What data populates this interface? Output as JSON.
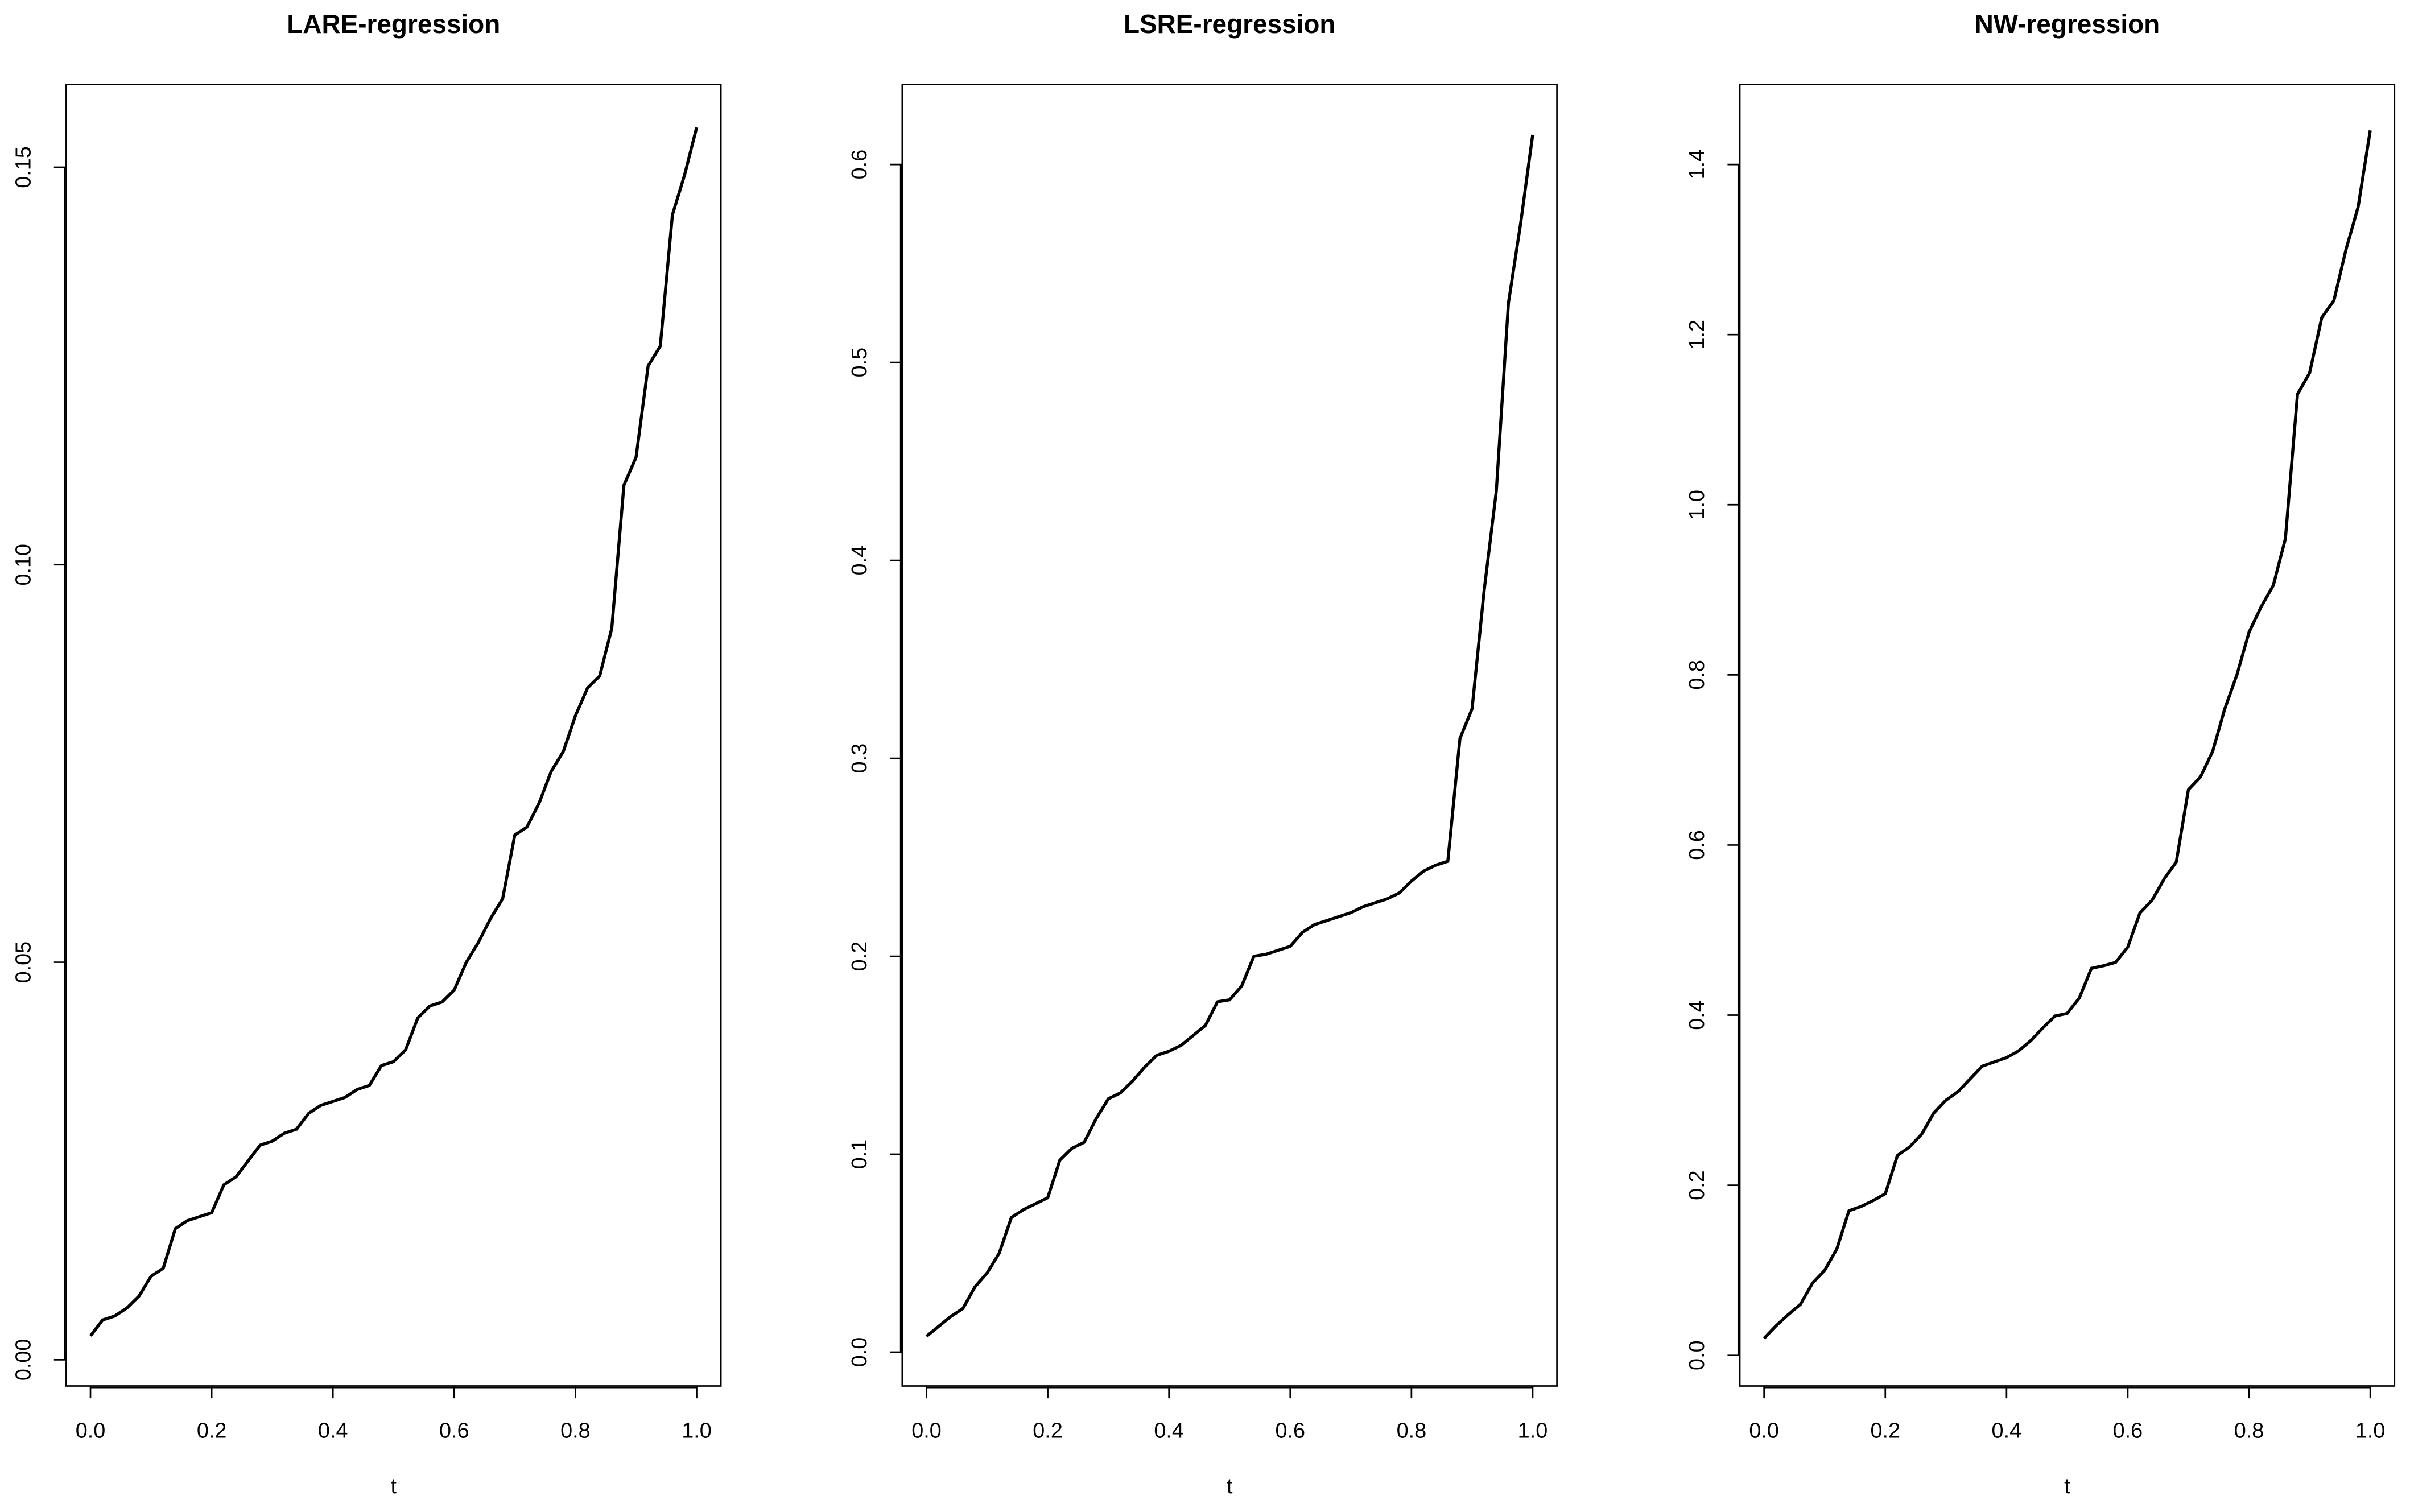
{
  "chart_data": [
    {
      "type": "line",
      "title": "LARE-regression",
      "xlabel": "t",
      "color": "#000000",
      "x": [
        0,
        0.02,
        0.04,
        0.06,
        0.08,
        0.1,
        0.12,
        0.14,
        0.16,
        0.18,
        0.2,
        0.22,
        0.24,
        0.26,
        0.28,
        0.3,
        0.32,
        0.34,
        0.36,
        0.38,
        0.4,
        0.42,
        0.44,
        0.46,
        0.48,
        0.5,
        0.52,
        0.54,
        0.56,
        0.58,
        0.6,
        0.62,
        0.64,
        0.66,
        0.68,
        0.7,
        0.72,
        0.74,
        0.76,
        0.78,
        0.8,
        0.82,
        0.84,
        0.86,
        0.88,
        0.9,
        0.92,
        0.94,
        0.96,
        0.98,
        1
      ],
      "values": [
        0.003,
        0.005,
        0.0055,
        0.0065,
        0.008,
        0.0105,
        0.0115,
        0.0165,
        0.0175,
        0.018,
        0.0185,
        0.022,
        0.023,
        0.025,
        0.027,
        0.0275,
        0.0285,
        0.029,
        0.031,
        0.032,
        0.0325,
        0.033,
        0.034,
        0.0345,
        0.037,
        0.0375,
        0.039,
        0.043,
        0.0445,
        0.045,
        0.0465,
        0.05,
        0.0525,
        0.0555,
        0.058,
        0.066,
        0.067,
        0.07,
        0.074,
        0.0765,
        0.081,
        0.0845,
        0.086,
        0.092,
        0.11,
        0.1135,
        0.125,
        0.1275,
        0.144,
        0.149,
        0.155
      ],
      "xlim": [
        -0.04,
        1.04
      ],
      "ylim": [
        -0.0033,
        0.1604
      ],
      "xticks": [
        {
          "value": 0,
          "label": "0.0"
        },
        {
          "value": 0.2,
          "label": "0.2"
        },
        {
          "value": 0.4,
          "label": "0.4"
        },
        {
          "value": 0.6,
          "label": "0.6"
        },
        {
          "value": 0.8,
          "label": "0.8"
        },
        {
          "value": 1,
          "label": "1.0"
        }
      ],
      "yticks": [
        {
          "value": 0,
          "label": "0.00"
        },
        {
          "value": 0.05,
          "label": "0.05"
        },
        {
          "value": 0.1,
          "label": "0.10"
        },
        {
          "value": 0.15,
          "label": "0.15"
        }
      ]
    },
    {
      "type": "line",
      "title": "LSRE-regression",
      "xlabel": "t",
      "color": "#000000",
      "x": [
        0,
        0.02,
        0.04,
        0.06,
        0.08,
        0.1,
        0.12,
        0.14,
        0.16,
        0.18,
        0.2,
        0.22,
        0.24,
        0.26,
        0.28,
        0.3,
        0.32,
        0.34,
        0.36,
        0.38,
        0.4,
        0.42,
        0.44,
        0.46,
        0.48,
        0.5,
        0.52,
        0.54,
        0.56,
        0.58,
        0.6,
        0.62,
        0.64,
        0.66,
        0.68,
        0.7,
        0.72,
        0.74,
        0.76,
        0.78,
        0.8,
        0.82,
        0.84,
        0.86,
        0.88,
        0.9,
        0.92,
        0.94,
        0.96,
        0.98,
        1
      ],
      "values": [
        0.008,
        0.013,
        0.018,
        0.022,
        0.033,
        0.04,
        0.05,
        0.068,
        0.072,
        0.075,
        0.078,
        0.097,
        0.103,
        0.106,
        0.118,
        0.128,
        0.131,
        0.137,
        0.144,
        0.15,
        0.152,
        0.155,
        0.16,
        0.165,
        0.177,
        0.178,
        0.185,
        0.2,
        0.201,
        0.203,
        0.205,
        0.212,
        0.216,
        0.218,
        0.22,
        0.222,
        0.225,
        0.227,
        0.229,
        0.232,
        0.238,
        0.243,
        0.246,
        0.248,
        0.31,
        0.325,
        0.385,
        0.435,
        0.53,
        0.57,
        0.615
      ],
      "xlim": [
        -0.04,
        1.04
      ],
      "ylim": [
        -0.0171,
        0.6404
      ],
      "xticks": [
        {
          "value": 0,
          "label": "0.0"
        },
        {
          "value": 0.2,
          "label": "0.2"
        },
        {
          "value": 0.4,
          "label": "0.4"
        },
        {
          "value": 0.6,
          "label": "0.6"
        },
        {
          "value": 0.8,
          "label": "0.8"
        },
        {
          "value": 1,
          "label": "1.0"
        }
      ],
      "yticks": [
        {
          "value": 0,
          "label": "0.0"
        },
        {
          "value": 0.1,
          "label": "0.1"
        },
        {
          "value": 0.2,
          "label": "0.2"
        },
        {
          "value": 0.3,
          "label": "0.3"
        },
        {
          "value": 0.4,
          "label": "0.4"
        },
        {
          "value": 0.5,
          "label": "0.5"
        },
        {
          "value": 0.6,
          "label": "0.6"
        }
      ]
    },
    {
      "type": "line",
      "title": "NW-regression",
      "xlabel": "t",
      "color": "#000000",
      "x": [
        0,
        0.02,
        0.04,
        0.06,
        0.08,
        0.1,
        0.12,
        0.14,
        0.16,
        0.18,
        0.2,
        0.22,
        0.24,
        0.26,
        0.28,
        0.3,
        0.32,
        0.34,
        0.36,
        0.38,
        0.4,
        0.42,
        0.44,
        0.46,
        0.48,
        0.5,
        0.52,
        0.54,
        0.56,
        0.58,
        0.6,
        0.62,
        0.64,
        0.66,
        0.68,
        0.7,
        0.72,
        0.74,
        0.76,
        0.78,
        0.8,
        0.82,
        0.84,
        0.86,
        0.88,
        0.9,
        0.92,
        0.94,
        0.96,
        0.98,
        1
      ],
      "values": [
        0.02,
        0.035,
        0.048,
        0.06,
        0.085,
        0.1,
        0.125,
        0.17,
        0.175,
        0.182,
        0.19,
        0.235,
        0.245,
        0.26,
        0.285,
        0.3,
        0.31,
        0.325,
        0.34,
        0.345,
        0.35,
        0.358,
        0.37,
        0.385,
        0.399,
        0.402,
        0.42,
        0.455,
        0.458,
        0.462,
        0.48,
        0.52,
        0.535,
        0.56,
        0.58,
        0.665,
        0.68,
        0.71,
        0.76,
        0.8,
        0.85,
        0.88,
        0.905,
        0.96,
        1.13,
        1.155,
        1.22,
        1.24,
        1.3,
        1.35,
        1.44
      ],
      "xlim": [
        -0.04,
        1.04
      ],
      "ylim": [
        -0.036,
        1.494
      ],
      "xticks": [
        {
          "value": 0,
          "label": "0.0"
        },
        {
          "value": 0.2,
          "label": "0.2"
        },
        {
          "value": 0.4,
          "label": "0.4"
        },
        {
          "value": 0.6,
          "label": "0.6"
        },
        {
          "value": 0.8,
          "label": "0.8"
        },
        {
          "value": 1,
          "label": "1.0"
        }
      ],
      "yticks": [
        {
          "value": 0,
          "label": "0.0"
        },
        {
          "value": 0.2,
          "label": "0.2"
        },
        {
          "value": 0.4,
          "label": "0.4"
        },
        {
          "value": 0.6,
          "label": "0.6"
        },
        {
          "value": 0.8,
          "label": "0.8"
        },
        {
          "value": 1,
          "label": "1.0"
        },
        {
          "value": 1.2,
          "label": "1.2"
        },
        {
          "value": 1.4,
          "label": "1.4"
        }
      ]
    }
  ]
}
